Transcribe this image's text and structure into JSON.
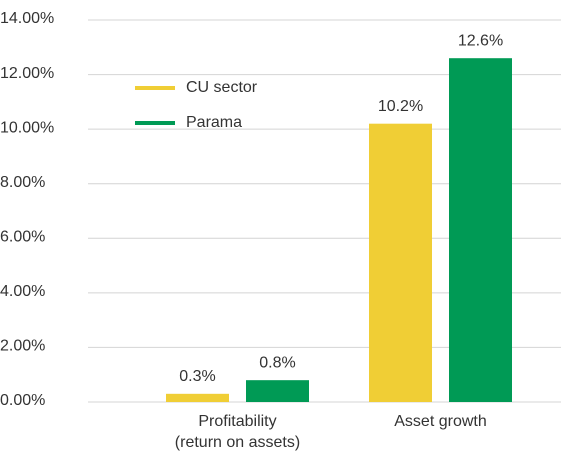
{
  "chart_data": {
    "type": "bar",
    "categories": [
      "Profitability\n(return on assets)",
      "Asset growth"
    ],
    "series": [
      {
        "name": "CU sector",
        "color": "#f0ce35",
        "values": [
          0.3,
          10.2
        ],
        "value_labels": [
          "0.3%",
          "10.2%"
        ]
      },
      {
        "name": "Parama",
        "color": "#009a55",
        "values": [
          0.8,
          12.6
        ],
        "value_labels": [
          "0.8%",
          "12.6%"
        ]
      }
    ],
    "ylim": [
      0,
      14
    ],
    "yticks": [
      {
        "value": 0,
        "label": "0.00%"
      },
      {
        "value": 2,
        "label": "2.00%"
      },
      {
        "value": 4,
        "label": "4.00%"
      },
      {
        "value": 6,
        "label": "6.00%"
      },
      {
        "value": 8,
        "label": "8.00%"
      },
      {
        "value": 10,
        "label": "10.00%"
      },
      {
        "value": 12,
        "label": "12.00%"
      },
      {
        "value": 14,
        "label": "14.00%"
      }
    ],
    "grid": true,
    "legend": "upper left"
  }
}
